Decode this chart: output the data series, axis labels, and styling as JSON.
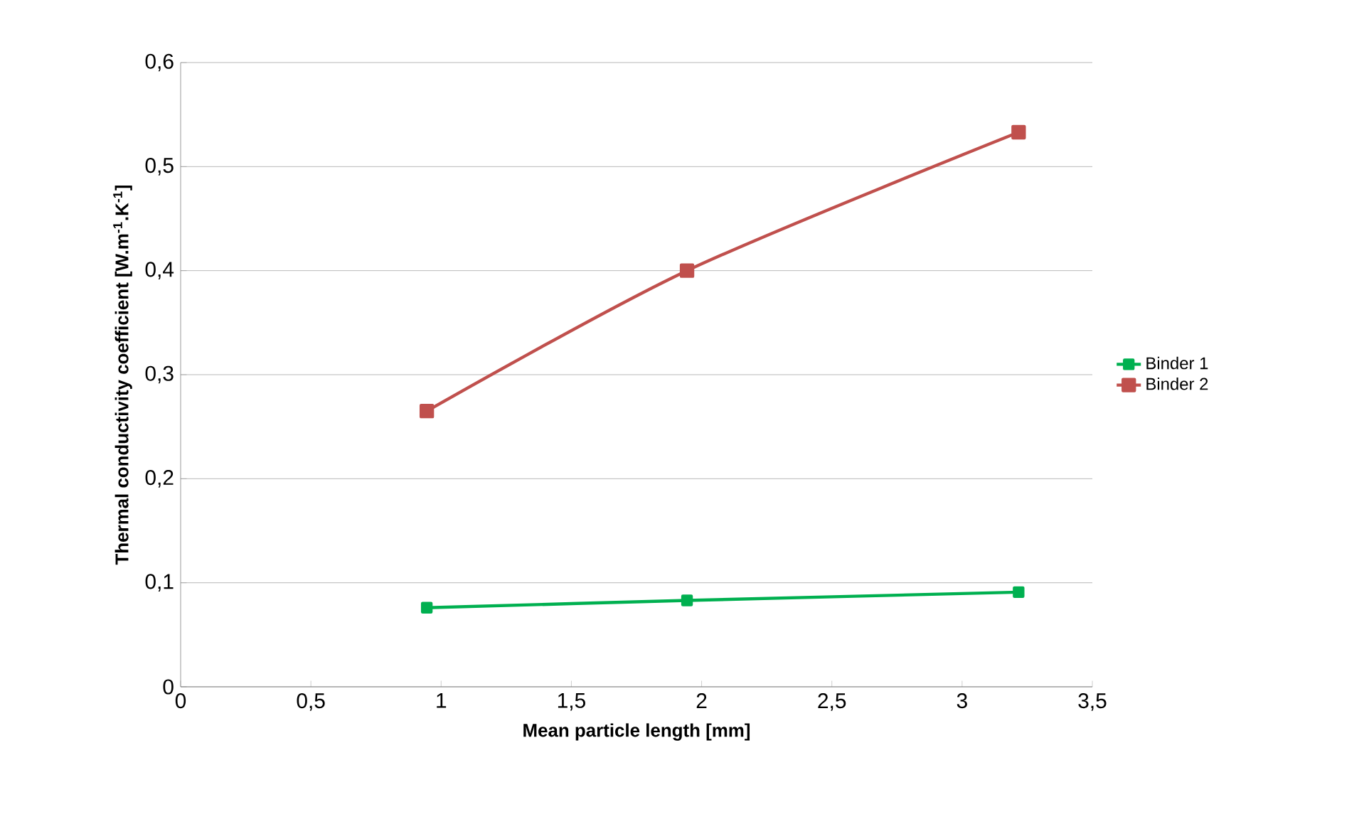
{
  "chart_data": {
    "type": "line",
    "xlabel": "Mean particle length [mm]",
    "ylabel": "Thermal conductivity coefficient [W.m$^{-1}$.K$^{-1}$]",
    "series": [
      {
        "name": "Binder 1",
        "color": "#00b050",
        "x": [
          0.945,
          1.944,
          3.217
        ],
        "values": [
          0.076,
          0.083,
          0.091
        ]
      },
      {
        "name": "Binder 2",
        "color": "#c0504d",
        "x": [
          0.945,
          1.944,
          3.217
        ],
        "values": [
          0.265,
          0.4,
          0.533
        ]
      }
    ],
    "xlim": [
      0,
      3.5
    ],
    "ylim": [
      0,
      0.6
    ],
    "xticks": [
      0,
      {
        "value": 0.5,
        "label": "0,5"
      },
      1,
      {
        "value": 1.5,
        "label": "1,5"
      },
      2,
      {
        "value": 2.5,
        "label": "2,5"
      },
      3,
      {
        "value": 3.5,
        "label": "3,5"
      }
    ],
    "yticks": [
      0,
      {
        "value": 0.1,
        "label": "0,1"
      },
      {
        "value": 0.2,
        "label": "0,2"
      },
      {
        "value": 0.3,
        "label": "0,3"
      },
      {
        "value": 0.4,
        "label": "0,4"
      },
      {
        "value": 0.5,
        "label": "0,5"
      },
      {
        "value": 0.6,
        "label": "0,6"
      }
    ],
    "grid": "y",
    "legend": "right",
    "marker": "square",
    "line_style": "solid"
  }
}
